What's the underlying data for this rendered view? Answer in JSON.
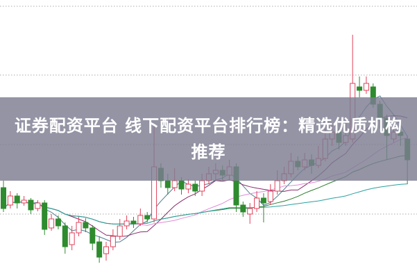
{
  "title": "证券配资平台 线下配资平台排行榜：精选优质机构推荐",
  "chart_data": {
    "type": "candlestick",
    "ylim": [
      0,
      400
    ],
    "grid": "horizontal-dotted",
    "colors": {
      "up": "#e0405a",
      "down": "#2e8b2e",
      "grid": "#aaaaaa",
      "ma": [
        "#4f7d8f",
        "#8a2a6a",
        "#e08ad8",
        "#2a7a2a",
        "#2aa0a0"
      ]
    },
    "moving_averages": [
      5,
      10,
      20,
      30,
      60
    ],
    "candles": [
      [
        130,
        100,
        140,
        95
      ],
      [
        105,
        118,
        125,
        100
      ],
      [
        118,
        108,
        122,
        100
      ],
      [
        108,
        112,
        118,
        104
      ],
      [
        112,
        98,
        115,
        92
      ],
      [
        100,
        108,
        112,
        96
      ],
      [
        108,
        70,
        112,
        62
      ],
      [
        72,
        85,
        92,
        68
      ],
      [
        85,
        75,
        90,
        70
      ],
      [
        75,
        45,
        80,
        35
      ],
      [
        48,
        65,
        75,
        40
      ],
      [
        65,
        80,
        88,
        60
      ],
      [
        80,
        72,
        86,
        66
      ],
      [
        72,
        50,
        76,
        40
      ],
      [
        52,
        30,
        60,
        22
      ],
      [
        35,
        45,
        52,
        25
      ],
      [
        45,
        60,
        70,
        40
      ],
      [
        60,
        75,
        85,
        55
      ],
      [
        75,
        82,
        90,
        70
      ],
      [
        82,
        78,
        88,
        72
      ],
      [
        78,
        90,
        100,
        75
      ],
      [
        90,
        85,
        95,
        80
      ],
      [
        85,
        160,
        220,
        80
      ],
      [
        158,
        140,
        165,
        130
      ],
      [
        140,
        130,
        150,
        120
      ],
      [
        130,
        140,
        158,
        125
      ],
      [
        140,
        128,
        145,
        120
      ],
      [
        128,
        135,
        142,
        122
      ],
      [
        135,
        125,
        140,
        118
      ],
      [
        125,
        140,
        150,
        118
      ],
      [
        140,
        150,
        160,
        135
      ],
      [
        150,
        155,
        165,
        140
      ],
      [
        155,
        148,
        162,
        140
      ],
      [
        148,
        160,
        170,
        142
      ],
      [
        160,
        105,
        165,
        95
      ],
      [
        105,
        95,
        110,
        88
      ],
      [
        92,
        100,
        108,
        78
      ],
      [
        100,
        115,
        125,
        95
      ],
      [
        115,
        108,
        122,
        80
      ],
      [
        110,
        125,
        135,
        105
      ],
      [
        125,
        140,
        155,
        120
      ],
      [
        140,
        150,
        160,
        135
      ],
      [
        150,
        168,
        180,
        145
      ],
      [
        168,
        160,
        175,
        155
      ],
      [
        160,
        170,
        180,
        155
      ],
      [
        170,
        162,
        178,
        150
      ],
      [
        162,
        172,
        190,
        158
      ],
      [
        172,
        200,
        215,
        168
      ],
      [
        200,
        210,
        220,
        190
      ],
      [
        210,
        195,
        215,
        185
      ],
      [
        195,
        205,
        225,
        190
      ],
      [
        200,
        280,
        350,
        195
      ],
      [
        275,
        270,
        290,
        260
      ],
      [
        270,
        280,
        290,
        265
      ],
      [
        275,
        250,
        280,
        245
      ],
      [
        250,
        230,
        255,
        215
      ],
      [
        230,
        205,
        235,
        170
      ],
      [
        200,
        210,
        225,
        195
      ],
      [
        210,
        205,
        220,
        190
      ],
      [
        200,
        170,
        205,
        135
      ]
    ]
  }
}
